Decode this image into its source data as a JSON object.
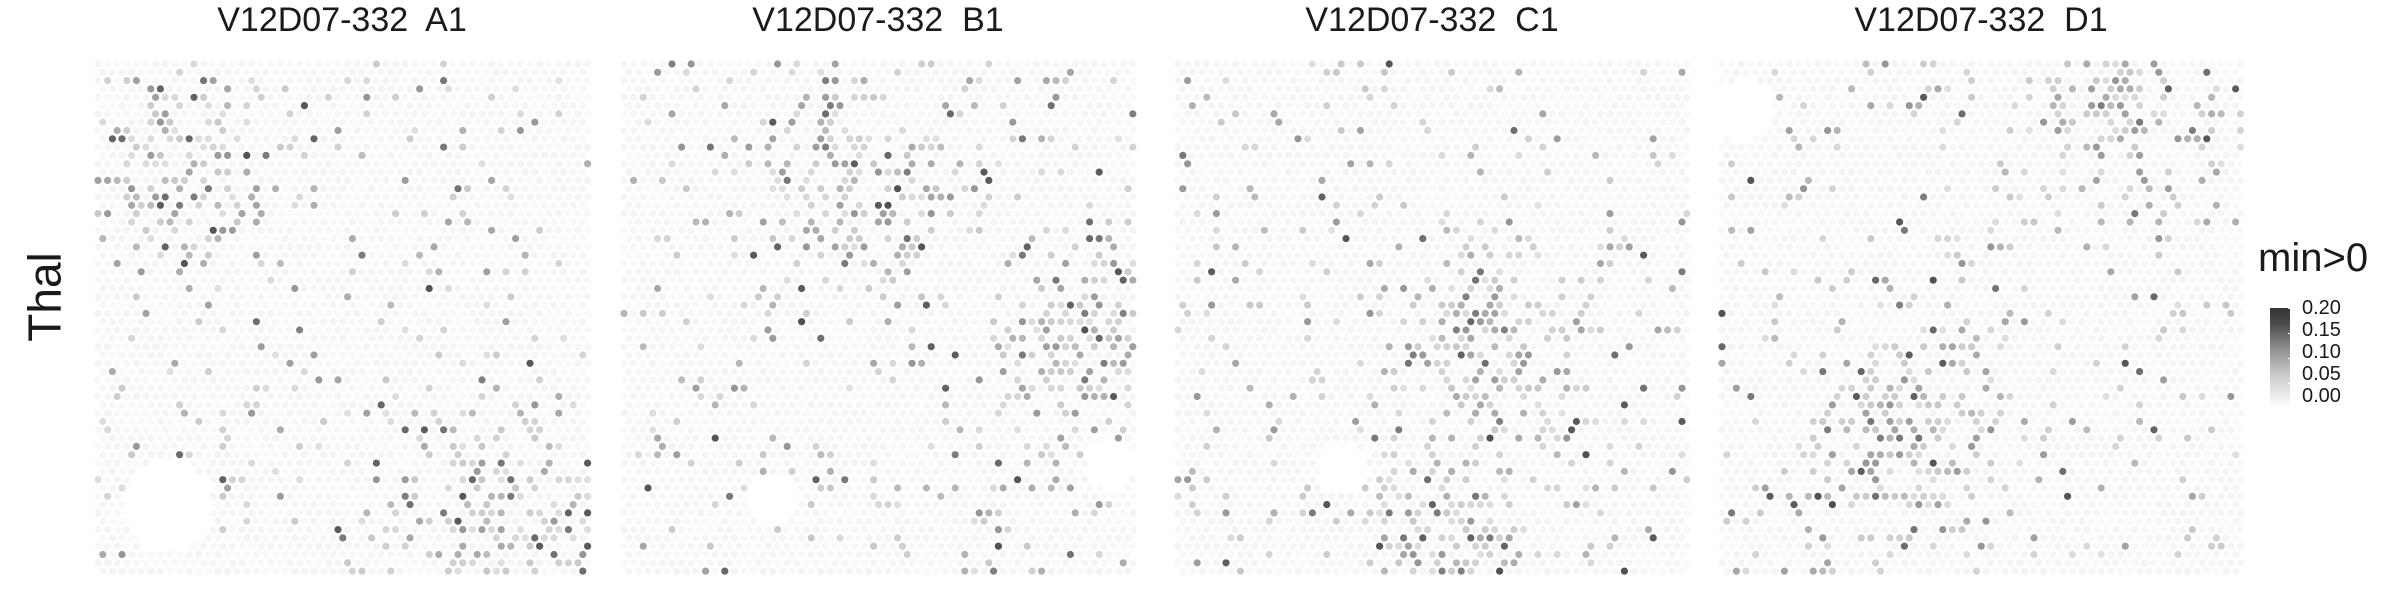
{
  "row_label": "Thal",
  "chart_data": {
    "type": "heatmap",
    "description_type": "spatial spot heatmap",
    "row": "Thal",
    "panels": [
      {
        "title": "V12D07-332  A1",
        "hotspots": [
          "upper-left",
          "lower-right"
        ]
      },
      {
        "title": "V12D07-332  B1",
        "hotspots": [
          "upper-middle",
          "right-middle"
        ]
      },
      {
        "title": "V12D07-332  C1",
        "hotspots": [
          "center-right",
          "bottom-center"
        ]
      },
      {
        "title": "V12D07-332  D1",
        "hotspots": [
          "top-right",
          "lower-middle"
        ]
      }
    ],
    "legend": {
      "title": "min>0",
      "ticks": [
        "0.20",
        "0.15",
        "0.10",
        "0.05",
        "0.00"
      ],
      "range": [
        0,
        0.2
      ],
      "colors": {
        "low": "#ffffff",
        "high": "#333333"
      }
    }
  }
}
